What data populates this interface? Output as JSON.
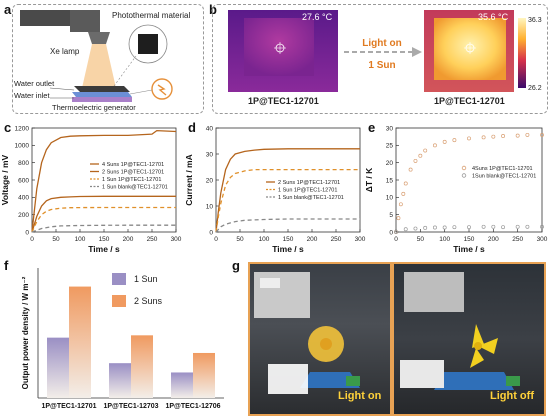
{
  "panel_labels": {
    "a": "a",
    "b": "b",
    "c": "c",
    "d": "d",
    "e": "e",
    "f": "f",
    "g": "g"
  },
  "panel_a": {
    "xe_lamp": "Xe lamp",
    "material": "Photothermal material",
    "outlet": "Water outlet",
    "inlet": "Water inlet",
    "teg": "Thermoelectric generator"
  },
  "panel_b": {
    "temp_left": "27.6 °C",
    "temp_right": "35.6 °C",
    "arrow_top": "Light on",
    "arrow_bottom": "1 Sun",
    "caption_left": "1P@TEC1-12701",
    "caption_right": "1P@TEC1-12701",
    "scale_max": "36.3",
    "scale_min": "26.2"
  },
  "panel_g": {
    "label_on": "Light on",
    "label_off": "Light off"
  },
  "chart_data": [
    {
      "id": "c",
      "type": "line",
      "xlabel": "Time / s",
      "ylabel": "Voltage / mV",
      "xlim": [
        0,
        300
      ],
      "ylim": [
        0,
        1200
      ],
      "xticks": [
        0,
        50,
        100,
        150,
        200,
        250,
        300
      ],
      "yticks": [
        0,
        200,
        400,
        600,
        800,
        1000,
        1200
      ],
      "series": [
        {
          "name": "4 Suns 1P@TEC1-12701",
          "color": "#b5651d",
          "dash": "",
          "x": [
            0,
            5,
            10,
            20,
            30,
            40,
            60,
            80,
            100,
            150,
            200,
            250,
            260,
            300
          ],
          "y": [
            0,
            250,
            500,
            800,
            950,
            1030,
            1090,
            1105,
            1110,
            1115,
            1115,
            1130,
            1170,
            1160
          ]
        },
        {
          "name": "2 Suns 1P@TEC1-12701",
          "color": "#b5651d",
          "dash": "",
          "x": [
            0,
            5,
            10,
            20,
            30,
            40,
            60,
            80,
            100,
            150,
            200,
            250,
            300
          ],
          "y": [
            0,
            90,
            180,
            300,
            360,
            385,
            400,
            405,
            410,
            412,
            412,
            412,
            412
          ]
        },
        {
          "name": "1 Sun 1P@TEC1-12701",
          "color": "#e0902a",
          "dash": "4,3",
          "x": [
            0,
            5,
            10,
            20,
            30,
            40,
            60,
            80,
            100,
            150,
            200,
            250,
            300
          ],
          "y": [
            0,
            60,
            120,
            200,
            240,
            260,
            275,
            280,
            282,
            283,
            283,
            283,
            283
          ]
        },
        {
          "name": "1 Sun blank@TEC1-12701",
          "color": "#888888",
          "dash": "4,3",
          "x": [
            0,
            10,
            20,
            40,
            60,
            100,
            150,
            200,
            250,
            300
          ],
          "y": [
            0,
            20,
            40,
            60,
            70,
            75,
            77,
            78,
            78,
            78
          ]
        }
      ]
    },
    {
      "id": "d",
      "type": "line",
      "xlabel": "Time / s",
      "ylabel": "Current / mA",
      "xlim": [
        0,
        300
      ],
      "ylim": [
        0,
        40
      ],
      "xticks": [
        0,
        50,
        100,
        150,
        200,
        250,
        300
      ],
      "yticks": [
        0,
        10,
        20,
        30,
        40
      ],
      "series": [
        {
          "name": "2 Suns 1P@TEC1-12701",
          "color": "#b5651d",
          "dash": "",
          "x": [
            0,
            5,
            10,
            20,
            30,
            40,
            60,
            80,
            100,
            150,
            200,
            250,
            300
          ],
          "y": [
            0,
            8,
            15,
            24,
            28,
            30,
            31,
            31.5,
            31.8,
            32,
            32,
            32,
            32
          ]
        },
        {
          "name": "1 Sun 1P@TEC1-12701",
          "color": "#e0902a",
          "dash": "4,3",
          "x": [
            0,
            5,
            10,
            20,
            30,
            40,
            60,
            80,
            100,
            150,
            200,
            250,
            300
          ],
          "y": [
            0,
            6,
            11,
            18,
            21,
            22.5,
            23.5,
            24,
            24,
            24,
            24,
            24,
            24
          ]
        },
        {
          "name": "1 Sun blank@TEC1-12701",
          "color": "#888888",
          "dash": "4,3",
          "x": [
            0,
            10,
            20,
            40,
            60,
            100,
            150,
            200,
            250,
            300
          ],
          "y": [
            0,
            2,
            3,
            4,
            4.5,
            4.8,
            5,
            5,
            5,
            5
          ]
        }
      ]
    },
    {
      "id": "e",
      "type": "scatter",
      "xlabel": "Time / s",
      "ylabel": "ΔT / K",
      "xlim": [
        0,
        300
      ],
      "ylim": [
        0,
        30
      ],
      "xticks": [
        0,
        50,
        100,
        150,
        200,
        250,
        300
      ],
      "yticks": [
        0,
        5,
        10,
        15,
        20,
        25,
        30
      ],
      "series": [
        {
          "name": "4Suns 1P@TEC1-12701",
          "color": "#d9a074",
          "x": [
            0,
            5,
            10,
            15,
            20,
            30,
            40,
            50,
            60,
            80,
            100,
            120,
            150,
            180,
            200,
            220,
            250,
            270,
            300
          ],
          "y": [
            0,
            4,
            8,
            11,
            14,
            18,
            20.5,
            22,
            23.5,
            25,
            26,
            26.5,
            27,
            27.3,
            27.5,
            27.7,
            27.8,
            28,
            28
          ]
        },
        {
          "name": "1Sun blank@TEC1-12701",
          "color": "#999999",
          "x": [
            0,
            20,
            40,
            60,
            80,
            100,
            120,
            150,
            180,
            200,
            220,
            250,
            270,
            300
          ],
          "y": [
            0,
            0.8,
            1,
            1.2,
            1.3,
            1.3,
            1.4,
            1.4,
            1.5,
            1.5,
            1.4,
            1.5,
            1.5,
            1.5
          ]
        }
      ]
    },
    {
      "id": "f",
      "type": "bar",
      "ylabel": "Output power density / W m⁻²",
      "ylim": [
        0,
        2.8
      ],
      "categories": [
        "1P@TEC1-12701",
        "1P@TEC1-12703",
        "1P@TEC1-12706"
      ],
      "series": [
        {
          "name": "1 Sun",
          "color": "#9a8fc4",
          "values": [
            1.3,
            0.75,
            0.55
          ]
        },
        {
          "name": "2 Suns",
          "color": "#f09a60",
          "values": [
            2.4,
            1.35,
            0.97
          ]
        }
      ]
    }
  ]
}
